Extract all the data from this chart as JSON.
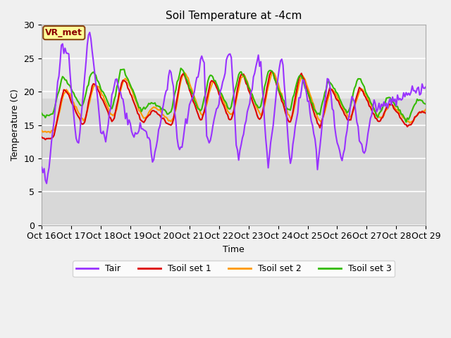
{
  "title": "Soil Temperature at -4cm",
  "xlabel": "Time",
  "ylabel": "Temperature (C)",
  "ylim": [
    0,
    30
  ],
  "yticks": [
    0,
    5,
    10,
    15,
    20,
    25,
    30
  ],
  "xlim": [
    0,
    312
  ],
  "xtick_positions": [
    0,
    24,
    48,
    72,
    96,
    120,
    144,
    168,
    192,
    216,
    240,
    264,
    288,
    312
  ],
  "xtick_labels": [
    "Oct 16",
    "Oct 17",
    "Oct 18",
    "Oct 19",
    "Oct 20",
    "Oct 21",
    "Oct 22",
    "Oct 23",
    "Oct 24",
    "Oct 25",
    "Oct 26",
    "Oct 27",
    "Oct 28",
    "Oct 29"
  ],
  "colors": {
    "Tair": "#9933FF",
    "Tsoil1": "#DD0000",
    "Tsoil2": "#FF9900",
    "Tsoil3": "#33BB00"
  },
  "legend_labels": [
    "Tair",
    "Tsoil set 1",
    "Tsoil set 2",
    "Tsoil set 3"
  ],
  "annotation_text": "VR_met",
  "plot_bg_upper": "#E8E8E8",
  "plot_bg_lower": "#D0D0D0",
  "grid_color": "#FFFFFF",
  "linewidth": 1.5,
  "fig_facecolor": "#F0F0F0"
}
